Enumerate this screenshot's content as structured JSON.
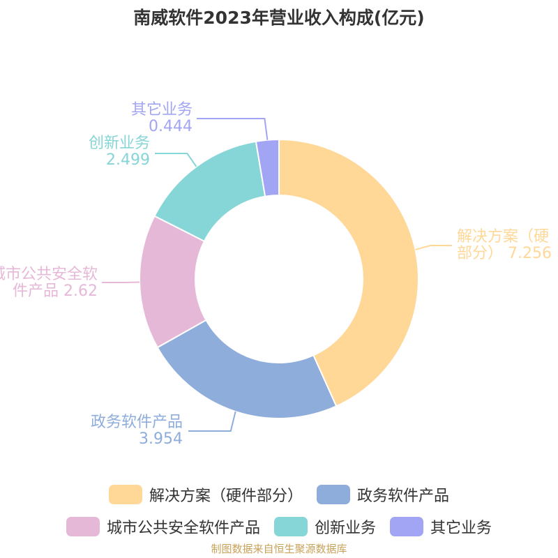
{
  "chart_data": {
    "type": "pie",
    "title": "南威软件2023年营业收入构成(亿元)",
    "source": "制图数据来自恒生聚源数据库",
    "slices": [
      {
        "name": "解决方案（硬件部分）",
        "label_line1": "解决方案（硬",
        "label_line2": "部分） 7.256",
        "value": 7.256,
        "color": "#ffd898"
      },
      {
        "name": "政务软件产品",
        "label_line1": "政务软件产品",
        "label_line2": "3.954",
        "value": 3.954,
        "color": "#8eaddb"
      },
      {
        "name": "城市公共安全软件产品",
        "label_line1": "城市公共安全软",
        "label_line2": "件产品 2.62",
        "value": 2.62,
        "color": "#e6b8d8"
      },
      {
        "name": "创新业务",
        "label_line1": "创新业务",
        "label_line2": "2.499",
        "value": 2.499,
        "color": "#86d5d7"
      },
      {
        "name": "其它业务",
        "label_line1": "其它业务",
        "label_line2": "0.444",
        "value": 0.444,
        "color": "#a1a5f3"
      }
    ]
  }
}
